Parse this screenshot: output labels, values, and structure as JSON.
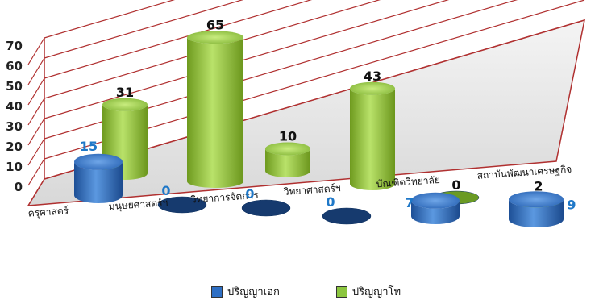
{
  "chart_data": {
    "type": "bar",
    "style": "3d-cylinder",
    "categories": [
      "ครุศาสตร์",
      "มนุษยศาสตร์ฯ",
      "วิทยาการจัดการ",
      "วิทยาศาสตร์ฯ",
      "บัณฑิตวิทยาลัย",
      "สถาบันพัฒนาเศรษฐกิจ"
    ],
    "series": [
      {
        "name": "ปริญญาเอก",
        "values": [
          15,
          0,
          0,
          0,
          7,
          9
        ],
        "color": "#2e6fc4",
        "label_color": "#1f78c8"
      },
      {
        "name": "ปริญญาโท",
        "values": [
          31,
          65,
          10,
          43,
          0,
          2
        ],
        "color": "#8cc63f",
        "label_color": "#111111"
      }
    ],
    "yticks": [
      "0",
      "10",
      "20",
      "30",
      "40",
      "50",
      "60",
      "70"
    ],
    "ylim": [
      0,
      70
    ],
    "grid": true,
    "legend_position": "bottom"
  }
}
